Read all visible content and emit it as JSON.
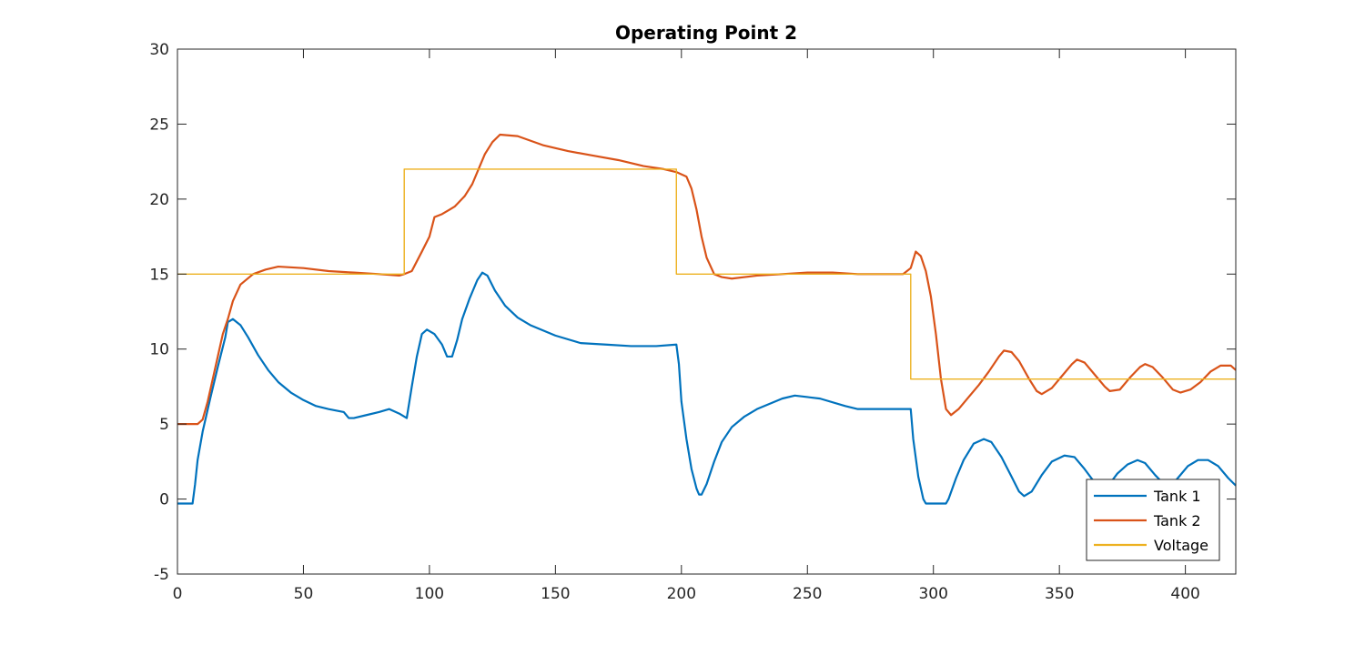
{
  "chart_data": {
    "type": "line",
    "title": "Operating Point 2",
    "xlabel": "",
    "ylabel": "",
    "xlim": [
      0,
      420
    ],
    "ylim": [
      -5,
      30
    ],
    "x_ticks": [
      0,
      50,
      100,
      150,
      200,
      250,
      300,
      350,
      400
    ],
    "y_ticks": [
      -5,
      0,
      5,
      10,
      15,
      20,
      25,
      30
    ],
    "grid": false,
    "legend_position": "bottom-right",
    "series": [
      {
        "name": "Tank 1",
        "color": "#0072BD",
        "points": [
          [
            0,
            -0.3
          ],
          [
            6,
            -0.3
          ],
          [
            7,
            1
          ],
          [
            8,
            2.6
          ],
          [
            10,
            4.5
          ],
          [
            13,
            6.7
          ],
          [
            16,
            8.8
          ],
          [
            19,
            10.8
          ],
          [
            20,
            11.8
          ],
          [
            22,
            12
          ],
          [
            25,
            11.6
          ],
          [
            28,
            10.8
          ],
          [
            32,
            9.6
          ],
          [
            36,
            8.6
          ],
          [
            40,
            7.8
          ],
          [
            45,
            7.1
          ],
          [
            50,
            6.6
          ],
          [
            55,
            6.2
          ],
          [
            60,
            6
          ],
          [
            66,
            5.8
          ],
          [
            68,
            5.4
          ],
          [
            70,
            5.4
          ],
          [
            75,
            5.6
          ],
          [
            80,
            5.8
          ],
          [
            84,
            6
          ],
          [
            88,
            5.7
          ],
          [
            91,
            5.4
          ],
          [
            93,
            7.5
          ],
          [
            95,
            9.5
          ],
          [
            97,
            11
          ],
          [
            99,
            11.3
          ],
          [
            102,
            11
          ],
          [
            105,
            10.3
          ],
          [
            107,
            9.5
          ],
          [
            109,
            9.5
          ],
          [
            111,
            10.6
          ],
          [
            113,
            12
          ],
          [
            116,
            13.4
          ],
          [
            119,
            14.6
          ],
          [
            121,
            15.1
          ],
          [
            123,
            14.9
          ],
          [
            126,
            13.9
          ],
          [
            130,
            12.9
          ],
          [
            135,
            12.1
          ],
          [
            140,
            11.6
          ],
          [
            150,
            10.9
          ],
          [
            160,
            10.4
          ],
          [
            170,
            10.3
          ],
          [
            180,
            10.2
          ],
          [
            190,
            10.2
          ],
          [
            198,
            10.3
          ],
          [
            199,
            9
          ],
          [
            200,
            6.5
          ],
          [
            202,
            4
          ],
          [
            204,
            2
          ],
          [
            206,
            0.7
          ],
          [
            207,
            0.3
          ],
          [
            208,
            0.3
          ],
          [
            210,
            1
          ],
          [
            213,
            2.5
          ],
          [
            216,
            3.8
          ],
          [
            220,
            4.8
          ],
          [
            225,
            5.5
          ],
          [
            230,
            6
          ],
          [
            240,
            6.7
          ],
          [
            245,
            6.9
          ],
          [
            250,
            6.8
          ],
          [
            255,
            6.7
          ],
          [
            265,
            6.2
          ],
          [
            270,
            6
          ],
          [
            280,
            6
          ],
          [
            285,
            6
          ],
          [
            290,
            6
          ],
          [
            291,
            6
          ],
          [
            292,
            4
          ],
          [
            294,
            1.5
          ],
          [
            296,
            0
          ],
          [
            297,
            -0.3
          ],
          [
            305,
            -0.3
          ],
          [
            306,
            0
          ],
          [
            309,
            1.4
          ],
          [
            312,
            2.6
          ],
          [
            316,
            3.7
          ],
          [
            320,
            4
          ],
          [
            323,
            3.8
          ],
          [
            327,
            2.8
          ],
          [
            331,
            1.5
          ],
          [
            334,
            0.5
          ],
          [
            336,
            0.2
          ],
          [
            339,
            0.5
          ],
          [
            343,
            1.6
          ],
          [
            347,
            2.5
          ],
          [
            352,
            2.9
          ],
          [
            356,
            2.8
          ],
          [
            360,
            2
          ],
          [
            364,
            1.1
          ],
          [
            367,
            0.6
          ],
          [
            369,
            0.8
          ],
          [
            373,
            1.7
          ],
          [
            377,
            2.3
          ],
          [
            381,
            2.6
          ],
          [
            384,
            2.4
          ],
          [
            388,
            1.6
          ],
          [
            392,
            0.9
          ],
          [
            394,
            0.8
          ],
          [
            397,
            1.4
          ],
          [
            401,
            2.2
          ],
          [
            405,
            2.6
          ],
          [
            409,
            2.6
          ],
          [
            413,
            2.2
          ],
          [
            417,
            1.4
          ],
          [
            420,
            0.9
          ]
        ]
      },
      {
        "name": "Tank 2",
        "color": "#D95319",
        "points": [
          [
            0,
            5
          ],
          [
            8,
            5
          ],
          [
            10,
            5.3
          ],
          [
            12,
            6.5
          ],
          [
            14,
            8
          ],
          [
            16,
            9.5
          ],
          [
            18,
            11
          ],
          [
            20,
            12
          ],
          [
            22,
            13.2
          ],
          [
            25,
            14.3
          ],
          [
            30,
            15
          ],
          [
            35,
            15.3
          ],
          [
            40,
            15.5
          ],
          [
            50,
            15.4
          ],
          [
            60,
            15.2
          ],
          [
            70,
            15.1
          ],
          [
            80,
            15
          ],
          [
            88,
            14.9
          ],
          [
            90,
            15
          ],
          [
            93,
            15.2
          ],
          [
            97,
            16.5
          ],
          [
            100,
            17.5
          ],
          [
            102,
            18.8
          ],
          [
            105,
            19
          ],
          [
            108,
            19.3
          ],
          [
            110,
            19.5
          ],
          [
            114,
            20.2
          ],
          [
            117,
            21
          ],
          [
            120,
            22.2
          ],
          [
            122,
            23
          ],
          [
            125,
            23.8
          ],
          [
            128,
            24.3
          ],
          [
            135,
            24.2
          ],
          [
            145,
            23.6
          ],
          [
            155,
            23.2
          ],
          [
            165,
            22.9
          ],
          [
            175,
            22.6
          ],
          [
            185,
            22.2
          ],
          [
            193,
            22
          ],
          [
            198,
            21.8
          ],
          [
            202,
            21.5
          ],
          [
            204,
            20.7
          ],
          [
            206,
            19.3
          ],
          [
            208,
            17.5
          ],
          [
            210,
            16.1
          ],
          [
            213,
            15
          ],
          [
            216,
            14.8
          ],
          [
            220,
            14.7
          ],
          [
            230,
            14.9
          ],
          [
            240,
            15
          ],
          [
            250,
            15.1
          ],
          [
            260,
            15.1
          ],
          [
            270,
            15
          ],
          [
            280,
            15
          ],
          [
            288,
            15
          ],
          [
            291,
            15.4
          ],
          [
            293,
            16.5
          ],
          [
            295,
            16.2
          ],
          [
            297,
            15.2
          ],
          [
            299,
            13.5
          ],
          [
            301,
            11
          ],
          [
            303,
            8
          ],
          [
            305,
            6
          ],
          [
            307,
            5.6
          ],
          [
            310,
            6
          ],
          [
            314,
            6.8
          ],
          [
            318,
            7.6
          ],
          [
            322,
            8.5
          ],
          [
            326,
            9.5
          ],
          [
            328,
            9.9
          ],
          [
            331,
            9.8
          ],
          [
            334,
            9.2
          ],
          [
            338,
            8
          ],
          [
            341,
            7.2
          ],
          [
            343,
            7
          ],
          [
            347,
            7.4
          ],
          [
            351,
            8.2
          ],
          [
            355,
            9
          ],
          [
            357,
            9.3
          ],
          [
            360,
            9.1
          ],
          [
            364,
            8.3
          ],
          [
            368,
            7.5
          ],
          [
            370,
            7.2
          ],
          [
            374,
            7.3
          ],
          [
            378,
            8.1
          ],
          [
            382,
            8.8
          ],
          [
            384,
            9
          ],
          [
            387,
            8.8
          ],
          [
            391,
            8.1
          ],
          [
            395,
            7.3
          ],
          [
            398,
            7.1
          ],
          [
            402,
            7.3
          ],
          [
            406,
            7.8
          ],
          [
            410,
            8.5
          ],
          [
            414,
            8.9
          ],
          [
            418,
            8.9
          ],
          [
            420,
            8.6
          ]
        ]
      },
      {
        "name": "Voltage",
        "color": "#EDB120",
        "points": [
          [
            0,
            15
          ],
          [
            90,
            15
          ],
          [
            90,
            22
          ],
          [
            198,
            22
          ],
          [
            198,
            15
          ],
          [
            291,
            15
          ],
          [
            291,
            8
          ],
          [
            420,
            8
          ]
        ]
      }
    ]
  }
}
